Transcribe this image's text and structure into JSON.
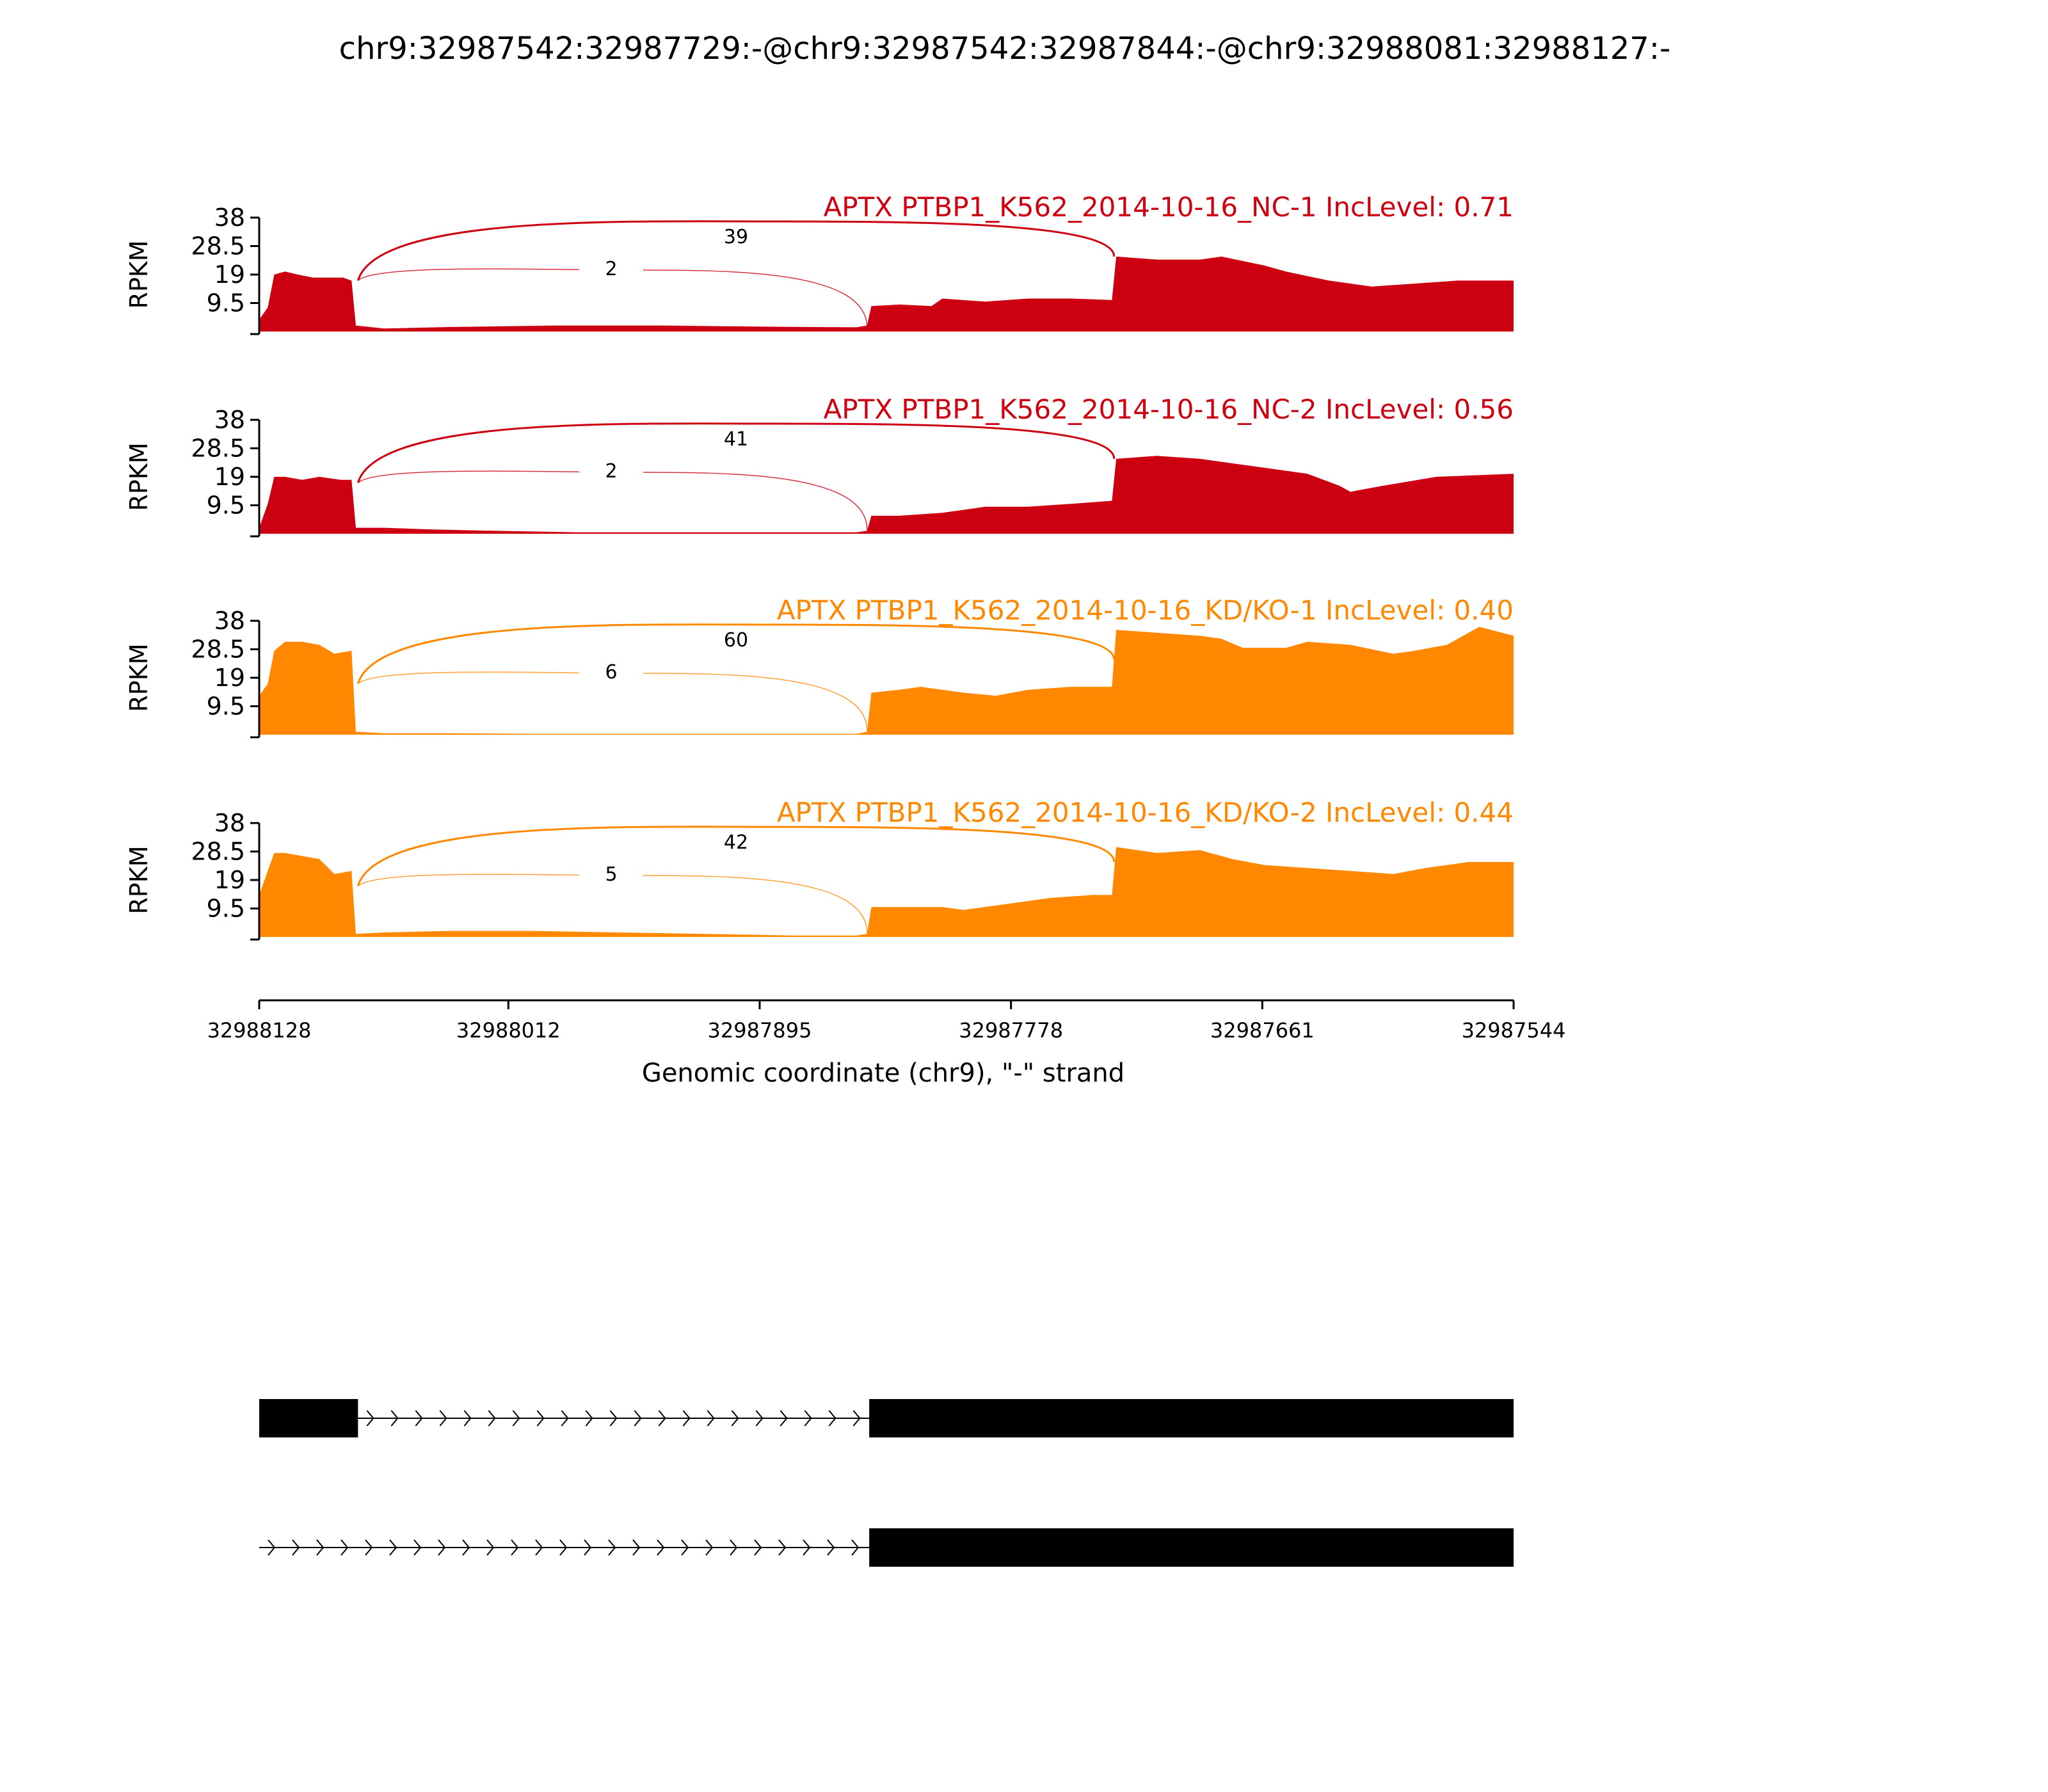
{
  "title": "chr9:32987542:32987729:-@chr9:32987542:32987844:-@chr9:32988081:32988127:-",
  "chart_data": {
    "type": "area",
    "ylabel": "RPKM",
    "yticks": [
      "38",
      "28.5",
      "19",
      "9.5"
    ],
    "ylim": [
      0,
      38
    ],
    "xlabel": "Genomic coordinate (chr9), \"-\" strand",
    "xticks": [
      "32988128",
      "32988012",
      "32987895",
      "32987778",
      "32987661",
      "32987544"
    ],
    "xlim": [
      32988128,
      32987544
    ],
    "tracks": [
      {
        "label": "APTX PTBP1_K562_2014-10-16_NC-1 IncLevel: 0.71",
        "color": "#cc0011",
        "profile": [
          [
            32988128,
            4
          ],
          [
            32988124,
            8
          ],
          [
            32988121,
            19
          ],
          [
            32988116,
            20
          ],
          [
            32988110,
            19
          ],
          [
            32988103,
            18
          ],
          [
            32988096,
            18
          ],
          [
            32988089,
            18
          ],
          [
            32988085,
            17
          ],
          [
            32988083,
            2
          ],
          [
            32988070,
            1
          ],
          [
            32988040,
            1.5
          ],
          [
            32987990,
            2
          ],
          [
            32987940,
            2
          ],
          [
            32987890,
            1.6
          ],
          [
            32987850,
            1.4
          ],
          [
            32987845,
            2
          ],
          [
            32987843,
            8.5
          ],
          [
            32987830,
            9
          ],
          [
            32987815,
            8.5
          ],
          [
            32987810,
            11
          ],
          [
            32987790,
            10
          ],
          [
            32987770,
            11
          ],
          [
            32987750,
            11
          ],
          [
            32987731,
            10.5
          ],
          [
            32987729,
            25
          ],
          [
            32987710,
            24
          ],
          [
            32987690,
            24
          ],
          [
            32987680,
            25
          ],
          [
            32987660,
            22
          ],
          [
            32987650,
            20
          ],
          [
            32987630,
            17
          ],
          [
            32987610,
            15
          ],
          [
            32987590,
            16
          ],
          [
            32987570,
            17
          ],
          [
            32987544,
            17
          ]
        ],
        "junctions": [
          {
            "count": "39",
            "from": 32988082,
            "to": 32987730
          },
          {
            "count": "2",
            "from": 32988082,
            "to": 32987845
          }
        ]
      },
      {
        "label": "APTX PTBP1_K562_2014-10-16_NC-2 IncLevel: 0.56",
        "color": "#cc0011",
        "profile": [
          [
            32988128,
            2
          ],
          [
            32988124,
            10
          ],
          [
            32988121,
            19
          ],
          [
            32988116,
            19
          ],
          [
            32988108,
            18
          ],
          [
            32988100,
            19
          ],
          [
            32988090,
            18
          ],
          [
            32988085,
            18
          ],
          [
            32988083,
            2
          ],
          [
            32988070,
            2
          ],
          [
            32988050,
            1.5
          ],
          [
            32988020,
            1
          ],
          [
            32987980,
            0.5
          ],
          [
            32987940,
            0.5
          ],
          [
            32987900,
            0.5
          ],
          [
            32987850,
            0.5
          ],
          [
            32987845,
            1
          ],
          [
            32987843,
            6
          ],
          [
            32987830,
            6
          ],
          [
            32987810,
            7
          ],
          [
            32987790,
            9
          ],
          [
            32987770,
            9
          ],
          [
            32987750,
            10
          ],
          [
            32987731,
            11
          ],
          [
            32987729,
            25
          ],
          [
            32987710,
            26
          ],
          [
            32987690,
            25
          ],
          [
            32987680,
            24
          ],
          [
            32987660,
            22
          ],
          [
            32987640,
            20
          ],
          [
            32987625,
            16
          ],
          [
            32987620,
            14
          ],
          [
            32987605,
            16
          ],
          [
            32987580,
            19
          ],
          [
            32987544,
            20
          ]
        ],
        "junctions": [
          {
            "count": "41",
            "from": 32988082,
            "to": 32987730
          },
          {
            "count": "2",
            "from": 32988082,
            "to": 32987845
          }
        ]
      },
      {
        "label": "APTX PTBP1_K562_2014-10-16_KD/KO-1 IncLevel: 0.40",
        "color": "#ff8800",
        "profile": [
          [
            32988128,
            13
          ],
          [
            32988124,
            17
          ],
          [
            32988121,
            28
          ],
          [
            32988116,
            31
          ],
          [
            32988108,
            31
          ],
          [
            32988100,
            30
          ],
          [
            32988093,
            27
          ],
          [
            32988085,
            28
          ],
          [
            32988083,
            1
          ],
          [
            32988070,
            0.5
          ],
          [
            32988040,
            0.5
          ],
          [
            32988000,
            0.3
          ],
          [
            32987960,
            0.3
          ],
          [
            32987900,
            0.3
          ],
          [
            32987850,
            0.3
          ],
          [
            32987845,
            1
          ],
          [
            32987843,
            14
          ],
          [
            32987830,
            15
          ],
          [
            32987820,
            16
          ],
          [
            32987800,
            14
          ],
          [
            32987785,
            13
          ],
          [
            32987770,
            15
          ],
          [
            32987750,
            16
          ],
          [
            32987731,
            16
          ],
          [
            32987729,
            35
          ],
          [
            32987710,
            34
          ],
          [
            32987690,
            33
          ],
          [
            32987680,
            32
          ],
          [
            32987670,
            29
          ],
          [
            32987650,
            29
          ],
          [
            32987640,
            31
          ],
          [
            32987620,
            30
          ],
          [
            32987600,
            27
          ],
          [
            32987590,
            28
          ],
          [
            32987575,
            30
          ],
          [
            32987560,
            36
          ],
          [
            32987544,
            33
          ]
        ],
        "junctions": [
          {
            "count": "60",
            "from": 32988082,
            "to": 32987730
          },
          {
            "count": "6",
            "from": 32988082,
            "to": 32987845
          }
        ]
      },
      {
        "label": "APTX PTBP1_K562_2014-10-16_KD/KO-2 IncLevel: 0.44",
        "color": "#ff8800",
        "profile": [
          [
            32988128,
            14
          ],
          [
            32988124,
            22
          ],
          [
            32988121,
            28
          ],
          [
            32988116,
            28
          ],
          [
            32988108,
            27
          ],
          [
            32988100,
            26
          ],
          [
            32988093,
            21
          ],
          [
            32988085,
            22
          ],
          [
            32988083,
            1
          ],
          [
            32988070,
            1.5
          ],
          [
            32988040,
            2
          ],
          [
            32988000,
            2
          ],
          [
            32987960,
            1.5
          ],
          [
            32987920,
            1
          ],
          [
            32987880,
            0.5
          ],
          [
            32987850,
            0.5
          ],
          [
            32987845,
            1
          ],
          [
            32987843,
            10
          ],
          [
            32987830,
            10
          ],
          [
            32987810,
            10
          ],
          [
            32987800,
            9
          ],
          [
            32987780,
            11
          ],
          [
            32987760,
            13
          ],
          [
            32987740,
            14
          ],
          [
            32987731,
            14
          ],
          [
            32987729,
            30
          ],
          [
            32987710,
            28
          ],
          [
            32987690,
            29
          ],
          [
            32987675,
            26
          ],
          [
            32987660,
            24
          ],
          [
            32987640,
            23
          ],
          [
            32987620,
            22
          ],
          [
            32987600,
            21
          ],
          [
            32987585,
            23
          ],
          [
            32987565,
            25
          ],
          [
            32987544,
            25
          ]
        ],
        "junctions": [
          {
            "count": "42",
            "from": 32988082,
            "to": 32987730
          },
          {
            "count": "5",
            "from": 32988082,
            "to": 32987845
          }
        ]
      }
    ],
    "isoforms": [
      {
        "exons": [
          [
            32988128,
            32988082
          ],
          [
            32987844,
            32987544
          ]
        ],
        "intron_start": 32988082,
        "intron_end": 32987844
      },
      {
        "exons": [
          [
            32987844,
            32987544
          ]
        ],
        "intron_start": 32988128,
        "intron_end": 32987844
      }
    ]
  }
}
